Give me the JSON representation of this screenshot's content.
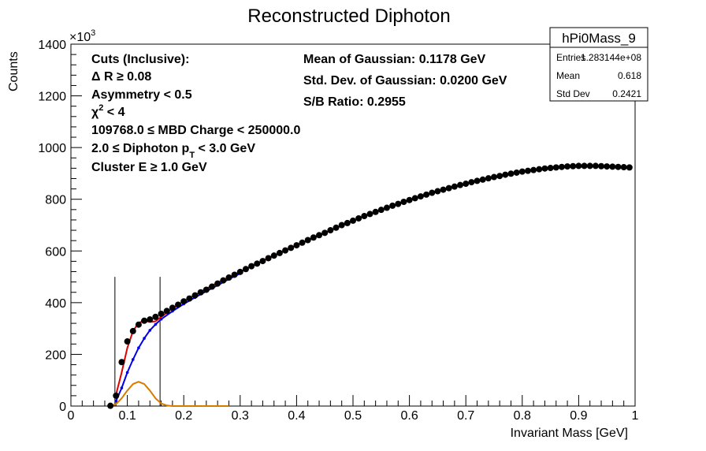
{
  "chart_data": {
    "type": "scatter",
    "title": "Reconstructed Diphoton",
    "xlabel": "Invariant Mass [GeV]",
    "ylabel": "Counts",
    "yexponent": "×10",
    "yexponent_power": "3",
    "xlim": [
      0,
      1
    ],
    "ylim": [
      0,
      1400
    ],
    "x_ticks": [
      "0",
      "0.1",
      "0.2",
      "0.3",
      "0.4",
      "0.5",
      "0.6",
      "0.7",
      "0.8",
      "0.9",
      "1"
    ],
    "y_ticks": [
      "0",
      "200",
      "400",
      "600",
      "800",
      "1000",
      "1200",
      "1400"
    ],
    "series": [
      {
        "kind": "points",
        "color": "#000000",
        "x": [
          0.07,
          0.08,
          0.09,
          0.1,
          0.11,
          0.12,
          0.13,
          0.14,
          0.15,
          0.16,
          0.17,
          0.18,
          0.19,
          0.2,
          0.21,
          0.22,
          0.23,
          0.24,
          0.25,
          0.26,
          0.27,
          0.28,
          0.29,
          0.3,
          0.31,
          0.32,
          0.33,
          0.34,
          0.35,
          0.36,
          0.37,
          0.38,
          0.39,
          0.4,
          0.41,
          0.42,
          0.43,
          0.44,
          0.45,
          0.46,
          0.47,
          0.48,
          0.49,
          0.5,
          0.51,
          0.52,
          0.53,
          0.54,
          0.55,
          0.56,
          0.57,
          0.58,
          0.59,
          0.6,
          0.61,
          0.62,
          0.63,
          0.64,
          0.65,
          0.66,
          0.67,
          0.68,
          0.69,
          0.7,
          0.71,
          0.72,
          0.73,
          0.74,
          0.75,
          0.76,
          0.77,
          0.78,
          0.79,
          0.8,
          0.81,
          0.82,
          0.83,
          0.84,
          0.85,
          0.86,
          0.87,
          0.88,
          0.89,
          0.9,
          0.91,
          0.92,
          0.93,
          0.94,
          0.95,
          0.96,
          0.97,
          0.98,
          0.99
        ],
        "y": [
          1,
          40,
          170,
          250,
          290,
          315,
          330,
          335,
          345,
          357,
          368,
          380,
          392,
          405,
          416,
          428,
          440,
          450,
          462,
          474,
          486,
          497,
          508,
          519,
          530,
          541,
          551,
          561,
          572,
          582,
          592,
          602,
          612,
          622,
          632,
          642,
          652,
          661,
          670,
          680,
          690,
          700,
          708,
          717,
          726,
          735,
          743,
          751,
          759,
          767,
          775,
          782,
          790,
          797,
          804,
          811,
          818,
          825,
          831,
          837,
          843,
          849,
          855,
          860,
          866,
          871,
          876,
          881,
          886,
          890,
          895,
          899,
          903,
          907,
          910,
          913,
          916,
          919,
          921,
          923,
          925,
          927,
          928,
          929,
          929,
          929,
          929,
          928,
          927,
          926,
          925,
          924,
          923
        ]
      },
      {
        "kind": "line",
        "name": "",
        "color": "#e00000",
        "x": [
          0.08,
          0.09,
          0.1,
          0.11,
          0.12,
          0.13,
          0.14,
          0.15,
          0.16,
          0.18,
          0.2,
          0.25,
          0.3,
          0.35,
          0.4,
          0.45,
          0.5
        ],
        "y": [
          45,
          130,
          225,
          290,
          322,
          330,
          325,
          328,
          345,
          378,
          405,
          466,
          519,
          572,
          622,
          670,
          717
        ]
      },
      {
        "kind": "line",
        "name": "",
        "color": "#0000ee",
        "x": [
          0.08,
          0.09,
          0.1,
          0.11,
          0.12,
          0.13,
          0.14,
          0.15,
          0.16,
          0.18,
          0.2,
          0.22,
          0.24,
          0.26,
          0.28,
          0.3
        ],
        "y": [
          20,
          70,
          130,
          180,
          225,
          262,
          293,
          316,
          336,
          367,
          395,
          420,
          444,
          467,
          491,
          513
        ]
      },
      {
        "kind": "line",
        "name": "",
        "color": "#d87a00",
        "x": [
          0.07,
          0.08,
          0.09,
          0.1,
          0.11,
          0.12,
          0.13,
          0.14,
          0.15,
          0.16,
          0.17,
          0.18,
          0.2,
          0.24,
          0.28
        ],
        "y": [
          0,
          8,
          30,
          60,
          85,
          94,
          85,
          60,
          30,
          10,
          2,
          0,
          0,
          0,
          0
        ]
      }
    ],
    "vlines": [
      0.078,
      0.158
    ],
    "vline_top": 500
  },
  "annotations_left": [
    "Cuts (Inclusive):",
    "Δ R  ≥ 0.08",
    "Asymmetry < 0.5",
    "χ² < 4",
    "109768.0  ≤ MBD Charge < 250000.0",
    "2.0  ≤ Diphoton p_T < 3.0 GeV",
    "Cluster E  ≥ 1.0 GeV"
  ],
  "annotations_right": [
    "Mean of Gaussian: 0.1178 GeV",
    "Std. Dev. of Gaussian: 0.0200 GeV",
    "S/B Ratio: 0.2955"
  ],
  "statsbox": {
    "name": "hPi0Mass_9",
    "rows": [
      {
        "label": "Entries",
        "value": "1.283144e+08"
      },
      {
        "label": "Mean",
        "value": "0.618"
      },
      {
        "label": "Std Dev",
        "value": "0.2421"
      }
    ]
  }
}
